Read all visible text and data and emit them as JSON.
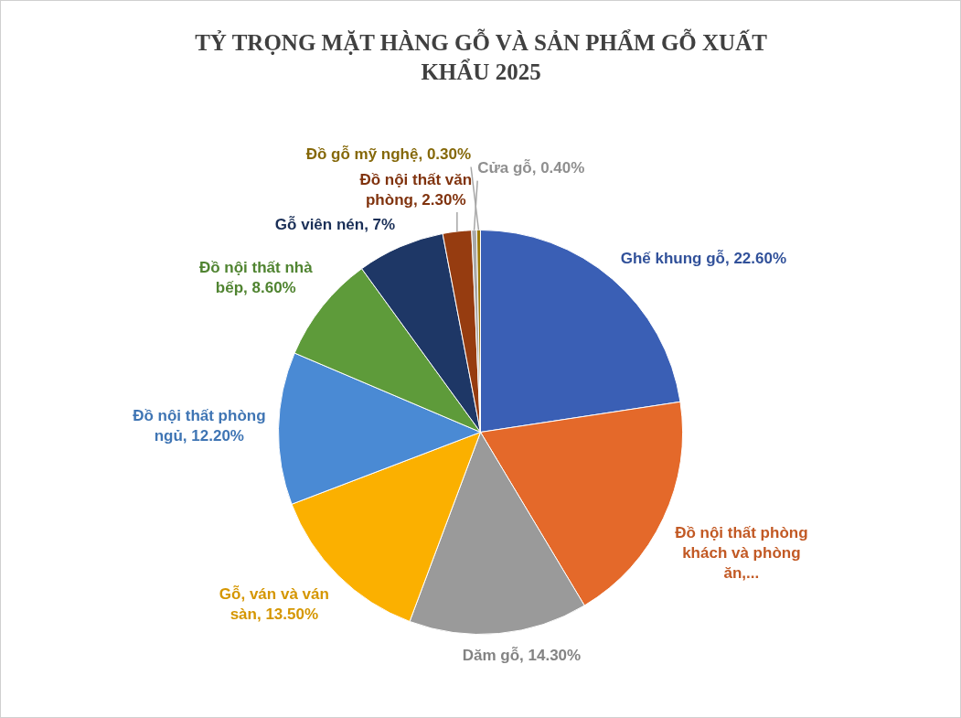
{
  "chart_data": {
    "type": "pie",
    "title": "TỶ TRỌNG MẶT HÀNG GỖ VÀ SẢN PHẨM GỖ XUẤT KHẨU 2025",
    "categories": [
      "Ghế khung gỗ",
      "Đồ nội thất phòng khách và phòng ăn,...",
      "Dăm gỗ",
      "Gỗ, ván và ván sàn",
      "Đồ nội thất phòng ngủ",
      "Đồ nội thất nhà bếp",
      "Gỗ viên nén",
      "Đồ nội thất văn phòng",
      "Cửa gỗ",
      "Đồ gỗ mỹ nghệ"
    ],
    "values": [
      22.6,
      18.8,
      14.3,
      13.5,
      12.2,
      8.6,
      7,
      2.3,
      0.4,
      0.3
    ],
    "value_labels": [
      "22.60%",
      null,
      "14.30%",
      "13.50%",
      "12.20%",
      "8.60%",
      "7%",
      "2.30%",
      "0.40%",
      "0.30%"
    ],
    "colors": [
      "#3a5fb5",
      "#e4692a",
      "#9a9a9a",
      "#fbb000",
      "#4a8ad4",
      "#5e9b3a",
      "#1e3766",
      "#963c10",
      "#a8a8a8",
      "#9c7a0a"
    ],
    "legend": false
  }
}
